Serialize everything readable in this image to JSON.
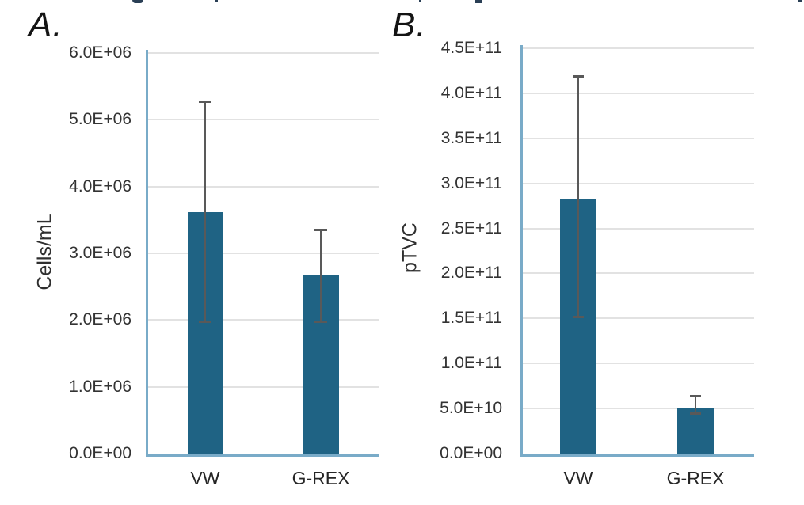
{
  "figure": {
    "description": "Two-panel bar chart comparing VW and G-REX culture methods",
    "colors": {
      "bar": "#1F6384",
      "axis_line": "#79ABC8",
      "gridline": "#E2E2E2",
      "error_bar": "#595959",
      "text": "#333333"
    }
  },
  "chart_data": [
    {
      "type": "bar",
      "panel_label": "A.",
      "title": "",
      "xlabel": "",
      "ylabel": "Cells/mL",
      "categories": [
        "VW",
        "G-REX"
      ],
      "values": [
        3620000,
        2670000
      ],
      "error_high": [
        5280000,
        3360000
      ],
      "error_low": [
        1970000,
        1970000
      ],
      "ymax": 6000000,
      "ylim": [
        0,
        6000000
      ],
      "ytick_labels": [
        "6.0E+06",
        "5.0E+06",
        "4.0E+06",
        "3.0E+06",
        "2.0E+06",
        "1.0E+06",
        "0.0E+00"
      ],
      "grid": true,
      "legend": "none"
    },
    {
      "type": "bar",
      "panel_label": "B.",
      "title": "",
      "xlabel": "",
      "ylabel": "pTVC",
      "categories": [
        "VW",
        "G-REX"
      ],
      "values": [
        283000000000,
        50500000000
      ],
      "error_high": [
        419000000000,
        64000000000
      ],
      "error_low": [
        151000000000,
        44000000000
      ],
      "ymax": 450000000000,
      "ylim": [
        0,
        450000000000
      ],
      "ytick_labels": [
        "4.5E+11",
        "4.0E+11",
        "3.5E+11",
        "3.0E+11",
        "2.5E+11",
        "2.0E+11",
        "1.5E+11",
        "1.0E+11",
        "5.0E+10",
        "0.0E+00"
      ],
      "grid": true,
      "legend": "none"
    }
  ]
}
